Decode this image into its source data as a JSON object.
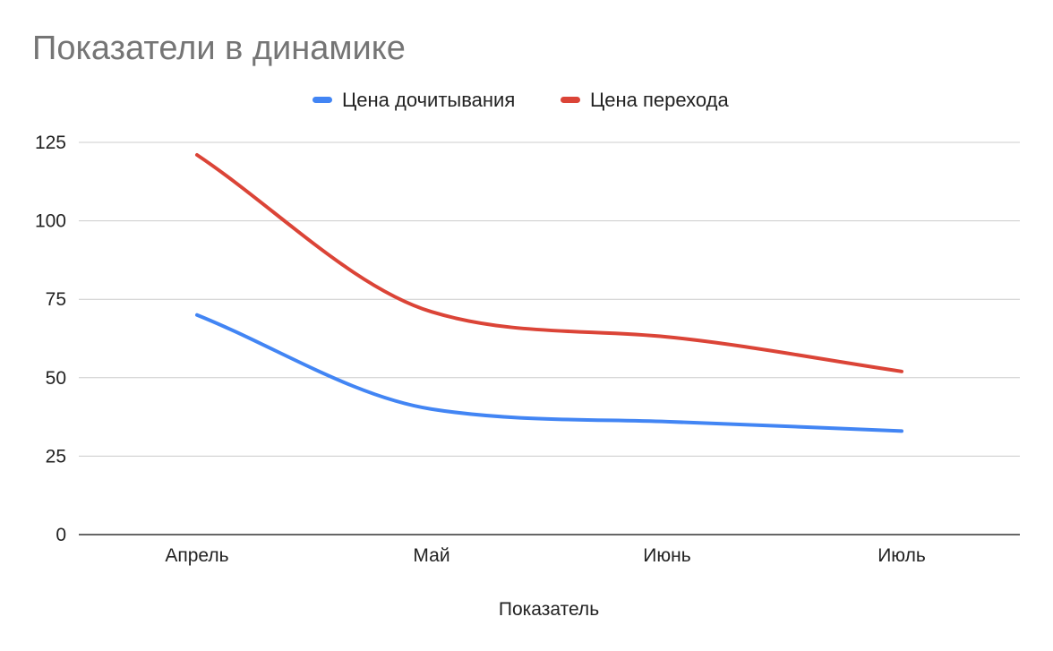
{
  "chart_data": {
    "type": "line",
    "title": "Показатели в динамике",
    "xlabel": "Показатель",
    "ylabel": "",
    "categories": [
      "Апрель",
      "Май",
      "Июнь",
      "Июль"
    ],
    "ylim": [
      0,
      125
    ],
    "yticks": [
      0,
      25,
      50,
      75,
      100,
      125
    ],
    "grid": true,
    "legend_position": "top",
    "smooth": true,
    "series": [
      {
        "name": "Цена дочитывания",
        "color": "#4285f4",
        "values": [
          70,
          40,
          36,
          33
        ]
      },
      {
        "name": "Цена перехода",
        "color": "#db4437",
        "values": [
          121,
          71,
          63,
          52
        ]
      }
    ]
  }
}
